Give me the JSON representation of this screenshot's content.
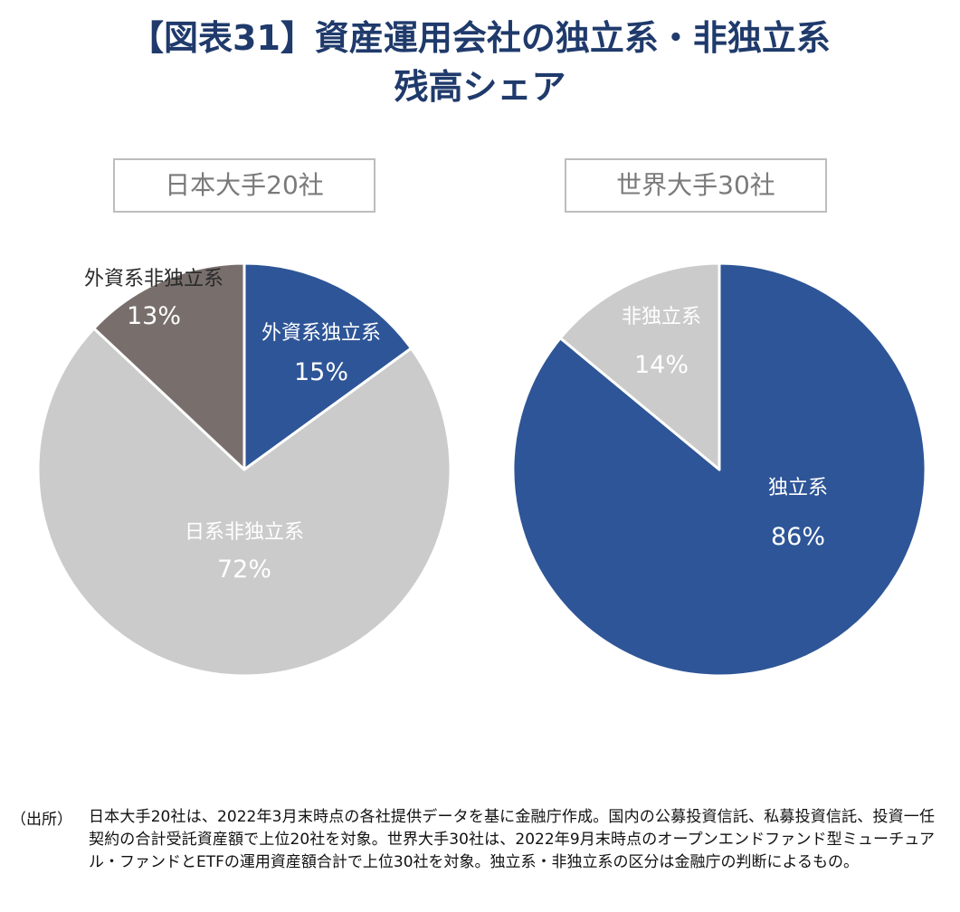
{
  "title": {
    "line1": "【図表31】資産運用会社の独立系・非独立系",
    "line2": "残高シェア"
  },
  "chart_data": [
    {
      "type": "pie",
      "title": "日本大手20社",
      "slices": [
        {
          "label": "外資系独立系",
          "value": 15,
          "display": "15%",
          "color": "#2e5597",
          "label_color": "#ffffff"
        },
        {
          "label": "日系非独立系",
          "value": 72,
          "display": "72%",
          "color": "#cbcbcb",
          "label_color": "#ffffff"
        },
        {
          "label": "外資系非独立系",
          "value": 13,
          "display": "13%",
          "color": "#786f6d",
          "label_color": "#ffffff"
        }
      ]
    },
    {
      "type": "pie",
      "title": "世界大手30社",
      "slices": [
        {
          "label": "独立系",
          "value": 86,
          "display": "86%",
          "color": "#2e5597",
          "label_color": "#ffffff"
        },
        {
          "label": "非独立系",
          "value": 14,
          "display": "14%",
          "color": "#cbcbcb",
          "label_color": "#ffffff"
        }
      ]
    }
  ],
  "source": {
    "label": "（出所）",
    "text": "日本大手20社は、2022年3月末時点の各社提供データを基に金融庁作成。国内の公募投資信託、私募投資信託、投資一任契約の合計受託資産額で上位20社を対象。世界大手30社は、2022年9月末時点のオープンエンドファンド型ミューチュアル・ファンドとETFの運用資産額合計で上位30社を対象。独立系・非独立系の区分は金融庁の判断によるもの。"
  }
}
